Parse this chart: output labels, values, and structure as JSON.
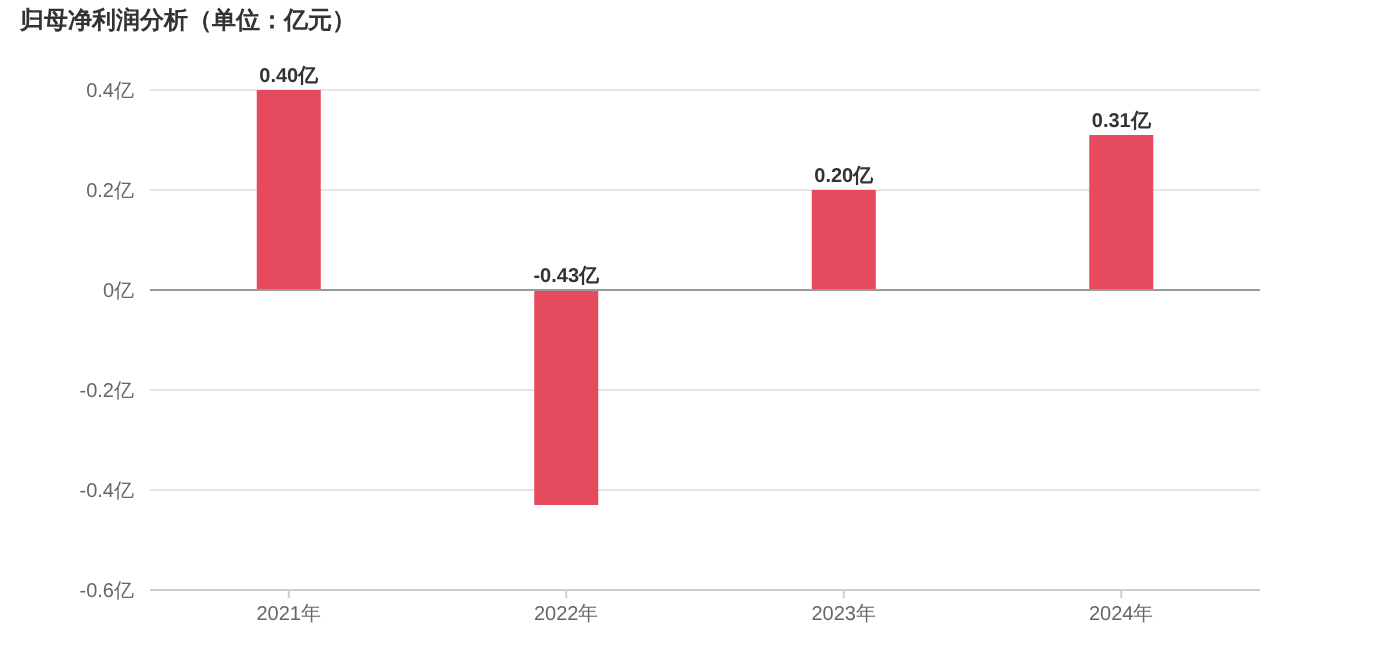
{
  "chart_data": {
    "type": "bar",
    "title": "归母净利润分析（单位：亿元）",
    "categories": [
      "2021年",
      "2022年",
      "2023年",
      "2024年"
    ],
    "values": [
      0.4,
      -0.43,
      0.2,
      0.31
    ],
    "value_labels": [
      "0.40亿",
      "-0.43亿",
      "0.20亿",
      "0.31亿"
    ],
    "color": "#e64a5e",
    "ylim": [
      -0.6,
      0.4
    ],
    "yticks": [
      {
        "value": 0.4,
        "label": "0.4亿"
      },
      {
        "value": 0.2,
        "label": "0.2亿"
      },
      {
        "value": 0,
        "label": "0亿"
      },
      {
        "value": -0.2,
        "label": "-0.2亿"
      },
      {
        "value": -0.4,
        "label": "-0.4亿"
      },
      {
        "value": -0.6,
        "label": "-0.6亿"
      }
    ],
    "grid": "y"
  }
}
